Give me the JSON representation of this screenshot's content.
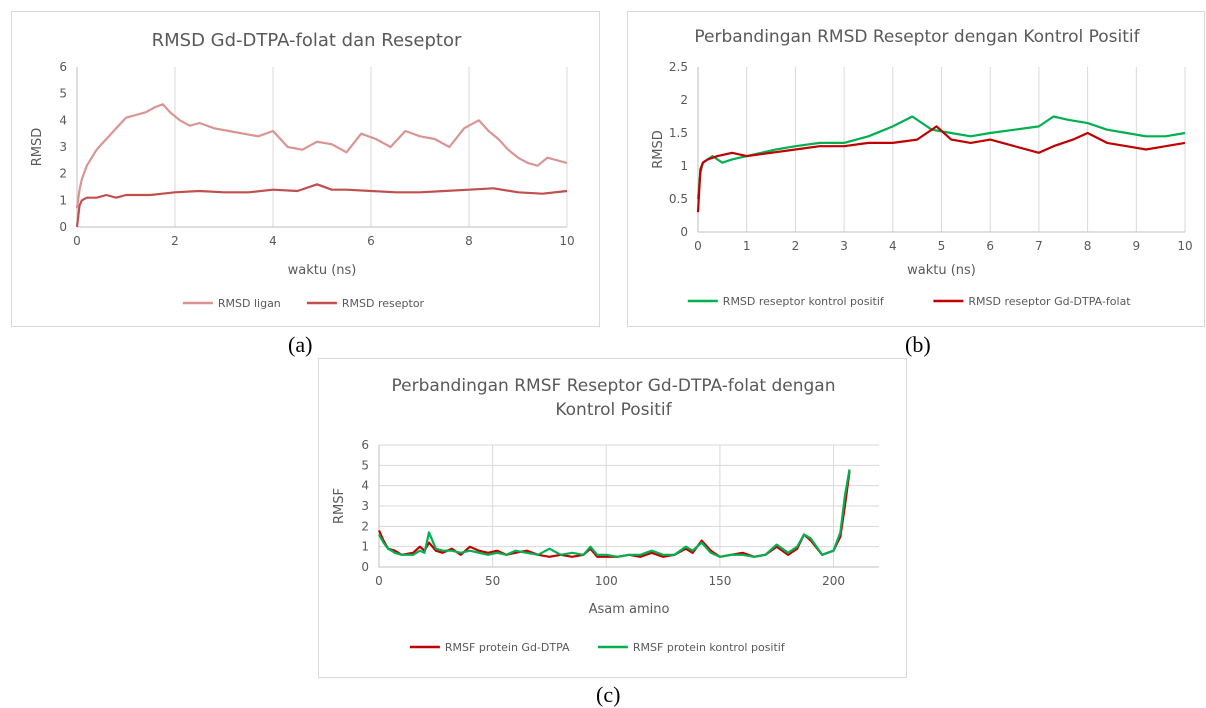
{
  "captions": {
    "a": "(a)",
    "b": "(b)",
    "c": "(c)"
  },
  "chart_data": [
    {
      "id": "a",
      "type": "line",
      "title": "RMSD Gd-DTPA-folat dan Reseptor",
      "xlabel": "waktu (ns)",
      "ylabel": "RMSD",
      "xlim": [
        0,
        10
      ],
      "ylim": [
        0,
        6
      ],
      "xticks": [
        0,
        2,
        4,
        6,
        8,
        10
      ],
      "yticks": [
        0,
        1,
        2,
        3,
        4,
        5,
        6
      ],
      "grid": "vertical",
      "legend": "bottom",
      "series": [
        {
          "name": "RMSD ligan",
          "color": "#d99594",
          "x": [
            0,
            0.05,
            0.1,
            0.2,
            0.3,
            0.4,
            0.5,
            0.6,
            0.8,
            1.0,
            1.2,
            1.4,
            1.6,
            1.75,
            1.9,
            2.1,
            2.3,
            2.5,
            2.8,
            3.1,
            3.4,
            3.7,
            4.0,
            4.3,
            4.6,
            4.9,
            5.2,
            5.5,
            5.8,
            6.1,
            6.4,
            6.7,
            7.0,
            7.3,
            7.6,
            7.9,
            8.2,
            8.4,
            8.6,
            8.8,
            9.0,
            9.2,
            9.4,
            9.6,
            9.8,
            10.0
          ],
          "y": [
            0.7,
            1.4,
            1.8,
            2.3,
            2.6,
            2.9,
            3.1,
            3.3,
            3.7,
            4.1,
            4.2,
            4.3,
            4.5,
            4.6,
            4.3,
            4.0,
            3.8,
            3.9,
            3.7,
            3.6,
            3.5,
            3.4,
            3.6,
            3.0,
            2.9,
            3.2,
            3.1,
            2.8,
            3.5,
            3.3,
            3.0,
            3.6,
            3.4,
            3.3,
            3.0,
            3.7,
            4.0,
            3.6,
            3.3,
            2.9,
            2.6,
            2.4,
            2.3,
            2.6,
            2.5,
            2.4
          ]
        },
        {
          "name": "RMSD reseptor",
          "color": "#c0504d",
          "x": [
            0,
            0.05,
            0.1,
            0.2,
            0.4,
            0.6,
            0.8,
            1.0,
            1.5,
            2.0,
            2.5,
            3.0,
            3.5,
            4.0,
            4.5,
            4.9,
            5.2,
            5.5,
            6.0,
            6.5,
            7.0,
            7.5,
            8.0,
            8.5,
            9.0,
            9.5,
            10.0
          ],
          "y": [
            0.0,
            0.8,
            1.0,
            1.1,
            1.1,
            1.2,
            1.1,
            1.2,
            1.2,
            1.3,
            1.35,
            1.3,
            1.3,
            1.4,
            1.35,
            1.6,
            1.4,
            1.4,
            1.35,
            1.3,
            1.3,
            1.35,
            1.4,
            1.45,
            1.3,
            1.25,
            1.35
          ]
        }
      ]
    },
    {
      "id": "b",
      "type": "line",
      "title": "Perbandingan RMSD Reseptor dengan Kontrol Positif",
      "xlabel": "waktu (ns)",
      "ylabel": "RMSD",
      "xlim": [
        0,
        10
      ],
      "ylim": [
        0,
        2.5
      ],
      "xticks": [
        0,
        1,
        2,
        3,
        4,
        5,
        6,
        7,
        8,
        9,
        10
      ],
      "yticks": [
        0,
        0.5,
        1,
        1.5,
        2,
        2.5
      ],
      "ytick_labels": [
        "0",
        "0.5",
        "1",
        "1.5",
        "2",
        "2.5"
      ],
      "grid": "vertical",
      "legend": "bottom",
      "series": [
        {
          "name": "RMSD reseptor kontrol positif",
          "color": "#00b050",
          "x": [
            0,
            0.05,
            0.1,
            0.2,
            0.3,
            0.5,
            0.7,
            1.0,
            1.3,
            1.6,
            2.0,
            2.5,
            3.0,
            3.5,
            4.0,
            4.4,
            4.8,
            5.2,
            5.6,
            6.0,
            6.5,
            7.0,
            7.3,
            7.6,
            8.0,
            8.4,
            8.8,
            9.2,
            9.6,
            10.0
          ],
          "y": [
            0.5,
            0.9,
            1.05,
            1.1,
            1.15,
            1.05,
            1.1,
            1.15,
            1.2,
            1.25,
            1.3,
            1.35,
            1.35,
            1.45,
            1.6,
            1.75,
            1.55,
            1.5,
            1.45,
            1.5,
            1.55,
            1.6,
            1.75,
            1.7,
            1.65,
            1.55,
            1.5,
            1.45,
            1.45,
            1.5
          ]
        },
        {
          "name": "RMSD reseptor Gd-DTPA-folat",
          "color": "#c00000",
          "x": [
            0,
            0.05,
            0.1,
            0.2,
            0.4,
            0.7,
            1.0,
            1.5,
            2.0,
            2.5,
            3.0,
            3.5,
            4.0,
            4.5,
            4.9,
            5.2,
            5.6,
            6.0,
            6.5,
            7.0,
            7.3,
            7.7,
            8.0,
            8.4,
            8.8,
            9.2,
            9.6,
            10.0
          ],
          "y": [
            0.3,
            0.95,
            1.05,
            1.1,
            1.15,
            1.2,
            1.15,
            1.2,
            1.25,
            1.3,
            1.3,
            1.35,
            1.35,
            1.4,
            1.6,
            1.4,
            1.35,
            1.4,
            1.3,
            1.2,
            1.3,
            1.4,
            1.5,
            1.35,
            1.3,
            1.25,
            1.3,
            1.35
          ]
        }
      ]
    },
    {
      "id": "c",
      "type": "line",
      "title": "Perbandingan RMSF Reseptor Gd-DTPA-folat dengan Kontrol Positif",
      "title_lines": [
        "Perbandingan RMSF Reseptor Gd-DTPA-folat dengan",
        "Kontrol Positif"
      ],
      "xlabel": "Asam amino",
      "ylabel": "RMSF",
      "xlim": [
        0,
        220
      ],
      "ylim": [
        0,
        6
      ],
      "xticks": [
        0,
        50,
        100,
        150,
        200
      ],
      "yticks": [
        0,
        1,
        2,
        3,
        4,
        5,
        6
      ],
      "grid": "both",
      "legend": "bottom",
      "series": [
        {
          "name": "RMSF protein Gd-DTPA",
          "color": "#c00000",
          "x": [
            0,
            2,
            4,
            7,
            10,
            15,
            18,
            20,
            22,
            25,
            28,
            32,
            36,
            40,
            44,
            48,
            52,
            56,
            60,
            65,
            70,
            75,
            80,
            85,
            90,
            93,
            96,
            100,
            105,
            110,
            115,
            120,
            125,
            130,
            135,
            138,
            142,
            146,
            150,
            155,
            160,
            165,
            170,
            175,
            180,
            184,
            187,
            190,
            195,
            200,
            203,
            205,
            207
          ],
          "y": [
            1.8,
            1.3,
            0.9,
            0.8,
            0.6,
            0.7,
            1.0,
            0.8,
            1.2,
            0.8,
            0.7,
            0.9,
            0.6,
            1.0,
            0.8,
            0.7,
            0.8,
            0.6,
            0.7,
            0.8,
            0.6,
            0.5,
            0.6,
            0.5,
            0.6,
            0.9,
            0.5,
            0.5,
            0.5,
            0.6,
            0.5,
            0.7,
            0.5,
            0.6,
            0.9,
            0.7,
            1.3,
            0.8,
            0.5,
            0.6,
            0.7,
            0.5,
            0.6,
            1.0,
            0.6,
            0.9,
            1.6,
            1.3,
            0.6,
            0.8,
            1.5,
            3.0,
            4.7
          ]
        },
        {
          "name": "RMSF protein kontrol positif",
          "color": "#00b050",
          "x": [
            0,
            2,
            4,
            7,
            10,
            15,
            18,
            20,
            22,
            25,
            28,
            32,
            36,
            40,
            44,
            48,
            52,
            56,
            60,
            65,
            70,
            75,
            80,
            85,
            90,
            93,
            96,
            100,
            105,
            110,
            115,
            120,
            125,
            130,
            135,
            138,
            142,
            146,
            150,
            155,
            160,
            165,
            170,
            175,
            180,
            184,
            187,
            190,
            195,
            200,
            203,
            205,
            207
          ],
          "y": [
            1.6,
            1.2,
            0.9,
            0.7,
            0.6,
            0.6,
            0.8,
            0.7,
            1.7,
            0.9,
            0.8,
            0.8,
            0.7,
            0.8,
            0.7,
            0.6,
            0.7,
            0.6,
            0.8,
            0.7,
            0.6,
            0.9,
            0.6,
            0.7,
            0.6,
            1.0,
            0.6,
            0.6,
            0.5,
            0.6,
            0.6,
            0.8,
            0.6,
            0.6,
            1.0,
            0.8,
            1.2,
            0.7,
            0.5,
            0.6,
            0.6,
            0.5,
            0.6,
            1.1,
            0.7,
            1.0,
            1.6,
            1.4,
            0.6,
            0.8,
            1.7,
            3.5,
            4.8
          ]
        }
      ]
    }
  ]
}
